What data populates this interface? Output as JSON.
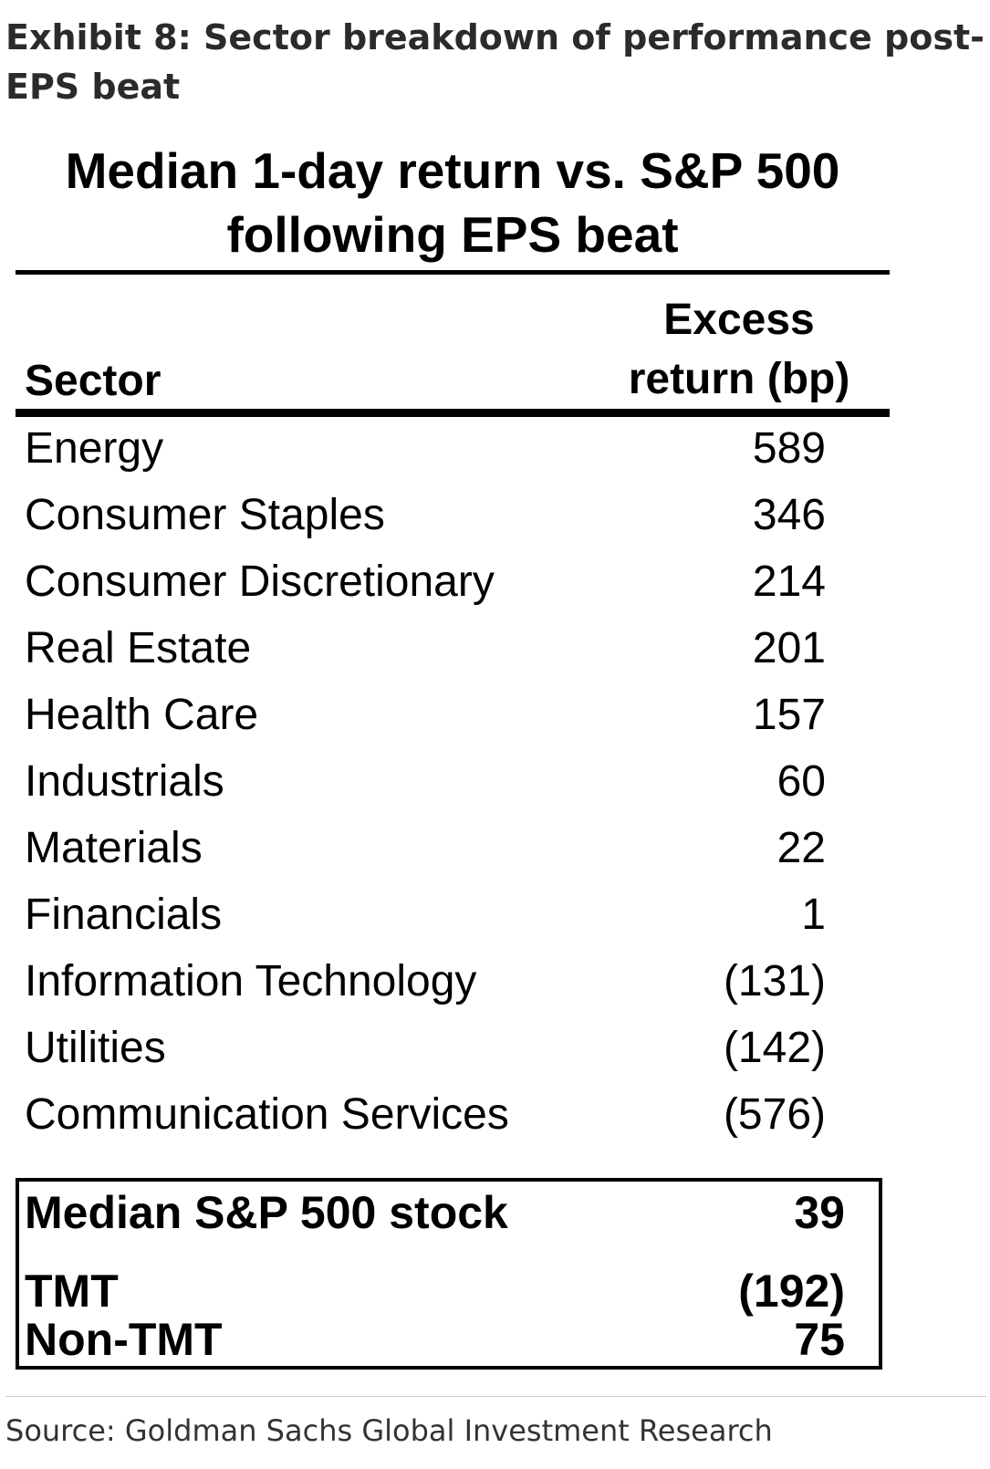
{
  "exhibit_title": "Exhibit 8: Sector breakdown of performance post-EPS beat",
  "chart_data": {
    "type": "table",
    "title_line1": "Median 1-day return vs. S&P 500",
    "title_line2": "following EPS beat",
    "columns": {
      "sector": "Sector",
      "value_line1": "Excess",
      "value_line2": "return (bp)"
    },
    "rows": [
      {
        "sector": "Energy",
        "value": 589,
        "display": "589"
      },
      {
        "sector": "Consumer Staples",
        "value": 346,
        "display": "346"
      },
      {
        "sector": "Consumer Discretionary",
        "value": 214,
        "display": "214"
      },
      {
        "sector": "Real Estate",
        "value": 201,
        "display": "201"
      },
      {
        "sector": "Health Care",
        "value": 157,
        "display": "157"
      },
      {
        "sector": "Industrials",
        "value": 60,
        "display": "60"
      },
      {
        "sector": "Materials",
        "value": 22,
        "display": "22"
      },
      {
        "sector": "Financials",
        "value": 1,
        "display": "1"
      },
      {
        "sector": "Information Technology",
        "value": -131,
        "display": "(131)"
      },
      {
        "sector": "Utilities",
        "value": -142,
        "display": "(142)"
      },
      {
        "sector": "Communication Services",
        "value": -576,
        "display": "(576)"
      }
    ],
    "summary": [
      {
        "label": "Median S&P 500 stock",
        "value": 39,
        "display": "39"
      },
      {
        "label": "TMT",
        "value": -192,
        "display": "(192)"
      },
      {
        "label": "Non-TMT",
        "value": 75,
        "display": "75"
      }
    ]
  },
  "source": "Source: Goldman Sachs Global Investment Research"
}
